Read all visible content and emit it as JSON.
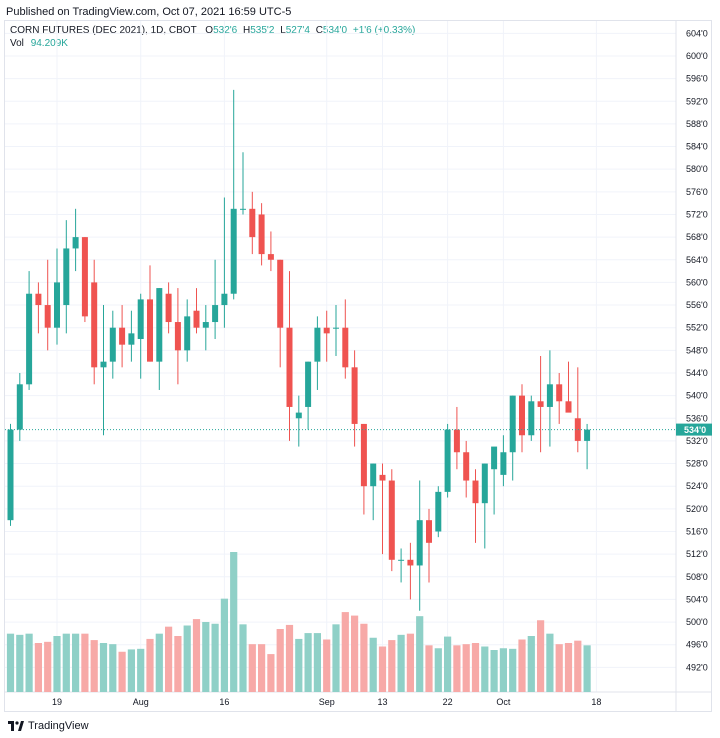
{
  "header": {
    "published": "Published on TradingView.com, Oct 07, 2021 16:59 UTC-5"
  },
  "legend": {
    "symbol": "CORN FUTURES (DEC 2021), 1D, CBOT",
    "o_label": "O",
    "o": "532'6",
    "h_label": "H",
    "h": "535'2",
    "l_label": "L",
    "l": "527'4",
    "c_label": "C",
    "c": "534'0",
    "change": "+1'6 (+0.33%)",
    "vol_label": "Vol",
    "vol": "94.209K"
  },
  "brand": {
    "name": "TradingView",
    "icon": "tradingview-logo-icon"
  },
  "colors": {
    "up": "#26a69a",
    "down": "#ef5350",
    "up_vol": "#8fd0c7",
    "down_vol": "#f7a9a7",
    "last": "#26a69a"
  },
  "chart_data": {
    "type": "candlestick",
    "price_unit": "cents per bushel (eighths notation)",
    "ylim": [
      488,
      606
    ],
    "yticks": [
      "604'0",
      "600'0",
      "596'0",
      "592'0",
      "588'0",
      "584'0",
      "580'0",
      "576'0",
      "572'0",
      "568'0",
      "564'0",
      "560'0",
      "556'0",
      "552'0",
      "548'0",
      "544'0",
      "540'0",
      "536'0",
      "532'0",
      "528'0",
      "524'0",
      "520'0",
      "516'0",
      "512'0",
      "508'0",
      "504'0",
      "500'0",
      "496'0",
      "492'0"
    ],
    "yticks_values": [
      604,
      600,
      596,
      592,
      588,
      584,
      580,
      576,
      572,
      568,
      564,
      560,
      556,
      552,
      548,
      544,
      540,
      536,
      532,
      528,
      524,
      520,
      516,
      512,
      508,
      504,
      500,
      496,
      492
    ],
    "xticks": [
      {
        "label": "19",
        "index": 5
      },
      {
        "label": "Aug",
        "index": 14
      },
      {
        "label": "16",
        "index": 23
      },
      {
        "label": "Sep",
        "index": 34
      },
      {
        "label": "13",
        "index": 40
      },
      {
        "label": "22",
        "index": 47
      },
      {
        "label": "Oct",
        "index": 53
      },
      {
        "label": "18",
        "index": 63
      }
    ],
    "last_price": {
      "label": "534'0",
      "value": 534.0
    },
    "candles": [
      {
        "o": 518,
        "h": 535,
        "l": 517,
        "c": 534,
        "v": 100
      },
      {
        "o": 534,
        "h": 544,
        "l": 532,
        "c": 542,
        "v": 98
      },
      {
        "o": 542,
        "h": 562,
        "l": 541,
        "c": 558,
        "v": 100
      },
      {
        "o": 558,
        "h": 560,
        "l": 551,
        "c": 556,
        "v": 84
      },
      {
        "o": 556,
        "h": 564,
        "l": 548,
        "c": 552,
        "v": 86
      },
      {
        "o": 552,
        "h": 566,
        "l": 549,
        "c": 560,
        "v": 96
      },
      {
        "o": 556,
        "h": 571,
        "l": 551,
        "c": 566,
        "v": 100
      },
      {
        "o": 566,
        "h": 573,
        "l": 562,
        "c": 568,
        "v": 100
      },
      {
        "o": 568,
        "h": 568,
        "l": 553,
        "c": 554,
        "v": 100
      },
      {
        "o": 560,
        "h": 564,
        "l": 542,
        "c": 545,
        "v": 89
      },
      {
        "o": 545,
        "h": 556,
        "l": 533,
        "c": 546,
        "v": 84
      },
      {
        "o": 546,
        "h": 555,
        "l": 543,
        "c": 552,
        "v": 82
      },
      {
        "o": 552,
        "h": 556,
        "l": 545,
        "c": 549,
        "v": 69
      },
      {
        "o": 549,
        "h": 555,
        "l": 546,
        "c": 551,
        "v": 73
      },
      {
        "o": 550,
        "h": 558,
        "l": 543,
        "c": 557,
        "v": 74
      },
      {
        "o": 557,
        "h": 563,
        "l": 546,
        "c": 546,
        "v": 91
      },
      {
        "o": 546,
        "h": 559,
        "l": 541,
        "c": 559,
        "v": 100
      },
      {
        "o": 558,
        "h": 560,
        "l": 551,
        "c": 553,
        "v": 112
      },
      {
        "o": 553,
        "h": 559,
        "l": 542,
        "c": 548,
        "v": 96
      },
      {
        "o": 548,
        "h": 557,
        "l": 546,
        "c": 554,
        "v": 114
      },
      {
        "o": 555,
        "h": 559,
        "l": 551,
        "c": 552,
        "v": 125
      },
      {
        "o": 552,
        "h": 556,
        "l": 548,
        "c": 553,
        "v": 120
      },
      {
        "o": 553,
        "h": 564,
        "l": 550,
        "c": 556,
        "v": 117
      },
      {
        "o": 556,
        "h": 575,
        "l": 552,
        "c": 558,
        "v": 160
      },
      {
        "o": 558,
        "h": 594,
        "l": 557,
        "c": 573,
        "v": 240
      },
      {
        "o": 573,
        "h": 583,
        "l": 572,
        "c": 573,
        "v": 116
      },
      {
        "o": 573,
        "h": 576,
        "l": 565,
        "c": 568,
        "v": 82
      },
      {
        "o": 572,
        "h": 574,
        "l": 563,
        "c": 565,
        "v": 82
      },
      {
        "o": 565,
        "h": 569,
        "l": 562,
        "c": 564,
        "v": 65
      },
      {
        "o": 564,
        "h": 564,
        "l": 545,
        "c": 552,
        "v": 108
      },
      {
        "o": 552,
        "h": 562,
        "l": 532,
        "c": 538,
        "v": 115
      },
      {
        "o": 536,
        "h": 540,
        "l": 531,
        "c": 537,
        "v": 91
      },
      {
        "o": 538,
        "h": 546,
        "l": 534,
        "c": 546,
        "v": 101
      },
      {
        "o": 546,
        "h": 554,
        "l": 541,
        "c": 552,
        "v": 101
      },
      {
        "o": 552,
        "h": 555,
        "l": 546,
        "c": 551,
        "v": 90
      },
      {
        "o": 552,
        "h": 556,
        "l": 547,
        "c": 552,
        "v": 116
      },
      {
        "o": 552,
        "h": 557,
        "l": 543,
        "c": 545,
        "v": 137
      },
      {
        "o": 545,
        "h": 548,
        "l": 531,
        "c": 535,
        "v": 131
      },
      {
        "o": 535,
        "h": 535,
        "l": 519,
        "c": 524,
        "v": 117
      },
      {
        "o": 524,
        "h": 528,
        "l": 518,
        "c": 528,
        "v": 93
      },
      {
        "o": 526,
        "h": 528,
        "l": 512,
        "c": 525,
        "v": 78
      },
      {
        "o": 525,
        "h": 527,
        "l": 509,
        "c": 511,
        "v": 89
      },
      {
        "o": 511,
        "h": 513,
        "l": 507,
        "c": 511,
        "v": 98
      },
      {
        "o": 511,
        "h": 514,
        "l": 504,
        "c": 510,
        "v": 100
      },
      {
        "o": 510,
        "h": 525,
        "l": 502,
        "c": 518,
        "v": 130
      },
      {
        "o": 518,
        "h": 520,
        "l": 507,
        "c": 514,
        "v": 80
      },
      {
        "o": 516,
        "h": 524,
        "l": 515,
        "c": 523,
        "v": 75
      },
      {
        "o": 523,
        "h": 535,
        "l": 522,
        "c": 534,
        "v": 95
      },
      {
        "o": 534,
        "h": 538,
        "l": 527,
        "c": 530,
        "v": 80
      },
      {
        "o": 530,
        "h": 532,
        "l": 522,
        "c": 525,
        "v": 82
      },
      {
        "o": 525,
        "h": 527,
        "l": 514,
        "c": 521,
        "v": 84
      },
      {
        "o": 521,
        "h": 528,
        "l": 513,
        "c": 528,
        "v": 78
      },
      {
        "o": 527,
        "h": 530,
        "l": 519,
        "c": 531,
        "v": 72
      },
      {
        "o": 526,
        "h": 533,
        "l": 524,
        "c": 530,
        "v": 75
      },
      {
        "o": 530,
        "h": 540,
        "l": 525,
        "c": 540,
        "v": 74
      },
      {
        "o": 540,
        "h": 542,
        "l": 530,
        "c": 533,
        "v": 90
      },
      {
        "o": 533,
        "h": 540,
        "l": 532,
        "c": 539,
        "v": 96
      },
      {
        "o": 539,
        "h": 547,
        "l": 530,
        "c": 538,
        "v": 123
      },
      {
        "o": 538,
        "h": 548,
        "l": 531,
        "c": 542,
        "v": 100
      },
      {
        "o": 542,
        "h": 544,
        "l": 535,
        "c": 539,
        "v": 82
      },
      {
        "o": 539,
        "h": 546,
        "l": 538,
        "c": 537,
        "v": 84
      },
      {
        "o": 536,
        "h": 545,
        "l": 530,
        "c": 532,
        "v": 88
      },
      {
        "o": 532,
        "h": 535,
        "l": 527,
        "c": 534,
        "v": 80
      }
    ]
  }
}
